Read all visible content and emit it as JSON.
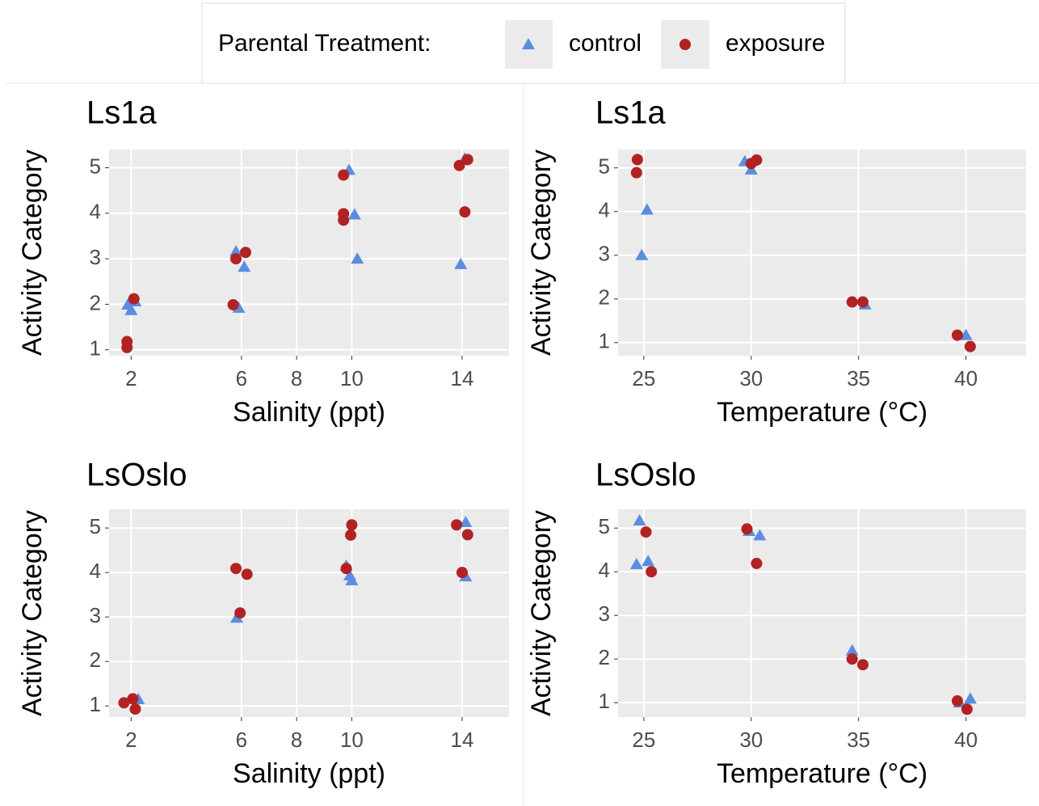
{
  "legend": {
    "title": "Parental Treatment:",
    "position": "top"
  },
  "chart_data": [
    {
      "type": "scatter",
      "title": "Ls1a",
      "xlabel": "Salinity (ppt)",
      "ylabel": "Activity Category",
      "xlim": [
        1.2,
        15.7
      ],
      "ylim": [
        0.87,
        5.4
      ],
      "xticks": [
        2,
        6,
        8,
        10,
        14
      ],
      "yticks": [
        1,
        2,
        3,
        4,
        5
      ],
      "grid": true,
      "series": [
        {
          "name": "control",
          "color": "#5b8de0",
          "marker": "triangle",
          "x": [
            1.88,
            2,
            2.15,
            5.8,
            6.1,
            5.9,
            9.9,
            10.1,
            10.2,
            13.95,
            14.1
          ],
          "y": [
            1.99,
            1.87,
            2.06,
            3.16,
            2.82,
            1.92,
            4.95,
            3.97,
            3.0,
            2.88,
            5.2
          ]
        },
        {
          "name": "exposure",
          "color": "#b22222",
          "marker": "circle",
          "x": [
            1.85,
            1.85,
            2.1,
            5.7,
            5.8,
            6.15,
            9.7,
            9.7,
            9.7,
            13.9,
            14.2,
            14.1
          ],
          "y": [
            1.18,
            1.05,
            2.12,
            1.99,
            3.0,
            3.14,
            4.84,
            3.99,
            3.85,
            5.05,
            5.18,
            4.03
          ]
        }
      ]
    },
    {
      "type": "scatter",
      "title": "Ls1a",
      "xlabel": "Temperature (°C)",
      "ylabel": "Activity Category",
      "xlim": [
        23.8,
        42.8
      ],
      "ylim": [
        0.7,
        5.42
      ],
      "xticks": [
        25,
        30,
        35,
        40
      ],
      "yticks": [
        1,
        2,
        3,
        4,
        5
      ],
      "grid": true,
      "series": [
        {
          "name": "control",
          "color": "#5b8de0",
          "marker": "triangle",
          "x": [
            25.15,
            24.9,
            29.7,
            30.0,
            35.3,
            40.0
          ],
          "y": [
            4.04,
            3.0,
            5.15,
            4.96,
            1.87,
            1.17
          ]
        },
        {
          "name": "exposure",
          "color": "#b22222",
          "marker": "circle",
          "x": [
            24.7,
            24.66,
            30.0,
            30.25,
            34.7,
            35.2,
            39.6,
            40.2
          ],
          "y": [
            5.19,
            4.89,
            5.1,
            5.18,
            1.93,
            1.93,
            1.17,
            0.91
          ]
        }
      ]
    },
    {
      "type": "scatter",
      "title": "LsOslo",
      "xlabel": "Salinity (ppt)",
      "ylabel": "Activity Category",
      "xlim": [
        1.2,
        15.7
      ],
      "ylim": [
        0.75,
        5.42
      ],
      "xticks": [
        2,
        6,
        8,
        10,
        14
      ],
      "yticks": [
        1,
        2,
        3,
        4,
        5
      ],
      "grid": true,
      "series": [
        {
          "name": "control",
          "color": "#5b8de0",
          "marker": "triangle",
          "x": [
            2.26,
            5.83,
            9.8,
            9.93,
            10,
            14.13,
            14.13
          ],
          "y": [
            1.15,
            2.98,
            4.15,
            3.93,
            3.82,
            5.13,
            3.91
          ]
        },
        {
          "name": "exposure",
          "color": "#b22222",
          "marker": "circle",
          "x": [
            1.74,
            2.06,
            2.15,
            5.8,
            6.2,
            5.95,
            10,
            9.96,
            9.8,
            13.8,
            14.2,
            14.0
          ],
          "y": [
            1.07,
            1.16,
            0.93,
            4.09,
            3.96,
            3.09,
            5.07,
            4.84,
            4.09,
            5.07,
            4.85,
            4.0
          ]
        }
      ]
    },
    {
      "type": "scatter",
      "title": "LsOslo",
      "xlabel": "Temperature (°C)",
      "ylabel": "Activity Category",
      "xlim": [
        23.8,
        42.8
      ],
      "ylim": [
        0.67,
        5.43
      ],
      "xticks": [
        25,
        30,
        35,
        40
      ],
      "yticks": [
        1,
        2,
        3,
        4,
        5
      ],
      "grid": true,
      "series": [
        {
          "name": "control",
          "color": "#5b8de0",
          "marker": "triangle",
          "x": [
            24.8,
            24.66,
            25.2,
            29.9,
            30.4,
            34.7,
            40.2,
            39.7
          ],
          "y": [
            5.17,
            4.17,
            4.24,
            4.93,
            4.83,
            2.19,
            1.09,
            1.0
          ]
        },
        {
          "name": "exposure",
          "color": "#b22222",
          "marker": "circle",
          "x": [
            25.1,
            25.35,
            29.8,
            30.25,
            34.7,
            35.2,
            39.6,
            40.05
          ],
          "y": [
            4.91,
            4.0,
            4.98,
            4.19,
            2.0,
            1.87,
            1.04,
            0.85
          ]
        }
      ]
    }
  ]
}
